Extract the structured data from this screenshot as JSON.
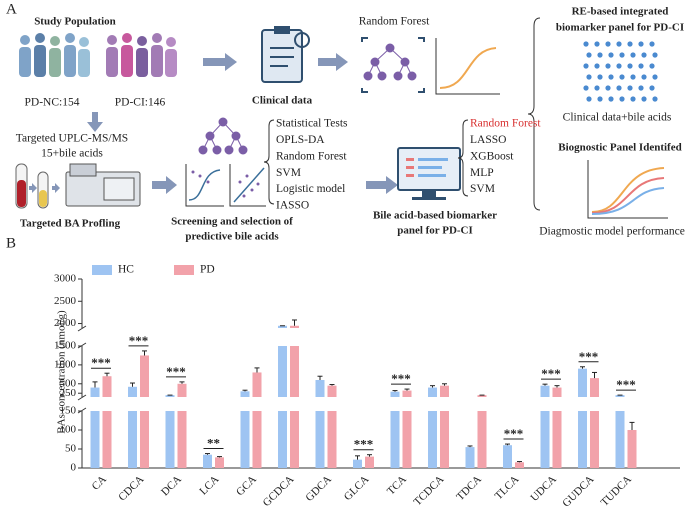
{
  "panel_a": {
    "label": "A",
    "study_population": "Study Population",
    "pd_nc": "PD-NC:154",
    "pd_ci": "PD-CI:146",
    "clinical_data": "Clinical data",
    "random_forest_top": "Random Forest",
    "integrated_title": [
      "RE-based integrated",
      "biomarker panel for PD-CI"
    ],
    "clinical_bile": "Clinical data+bile acids",
    "panel_identified": "Biognostic Panel Identifed",
    "model_performance": "Diagmostic model performance",
    "uplc": [
      "Targeted UPLC-MS/MS",
      "15+bile acids"
    ],
    "ba_profiling": "Targeted BA Profling",
    "screening": [
      "Screening and selection of",
      "predictive bile acids"
    ],
    "methods": [
      "Statistical Tests",
      "OPLS-DA",
      "Random Forest",
      "SVM",
      "Logistic model",
      "IASSO"
    ],
    "ba_panel": [
      "Bile acid-based biomarker",
      "panel for PD-CI"
    ],
    "models": [
      "Random Forest",
      "LASSO",
      "XGBoost",
      "MLP",
      "SVM"
    ]
  },
  "chart_data": {
    "type": "bar",
    "panel_label": "B",
    "y_label": "BAs concentration (nmol/g)",
    "categories": [
      "CA",
      "CDCA",
      "DCA",
      "LCA",
      "GCA",
      "GCDCA",
      "GDCA",
      "GLCA",
      "TCA",
      "TCDCA",
      "TDCA",
      "TLCA",
      "UDCA",
      "GUDCA",
      "TUDCA"
    ],
    "series": [
      {
        "name": "HC",
        "color": "#9ec4f2",
        "values": [
          400,
          420,
          200,
          35,
          300,
          1950,
          600,
          22,
          290,
          400,
          55,
          60,
          450,
          900,
          200
        ],
        "errors": [
          150,
          100,
          0,
          3,
          30,
          0,
          100,
          10,
          30,
          50,
          3,
          3,
          40,
          50,
          0
        ]
      },
      {
        "name": "PD",
        "color": "#f2a2aa",
        "values": [
          700,
          1250,
          500,
          28,
          800,
          1950,
          450,
          30,
          320,
          450,
          200,
          15,
          400,
          650,
          100
        ],
        "errors": [
          80,
          120,
          50,
          2,
          120,
          130,
          30,
          5,
          40,
          50,
          0,
          2,
          50,
          150,
          20
        ]
      }
    ],
    "axis_segments": [
      {
        "ylim": [
          0,
          150
        ],
        "yticks": [
          0,
          50,
          100,
          150
        ]
      },
      {
        "ylim": [
          150,
          1500
        ],
        "yticks": [
          250,
          500,
          1000,
          1500
        ]
      },
      {
        "ylim": [
          1900,
          3000
        ],
        "yticks": [
          2000,
          2500,
          3000
        ]
      }
    ],
    "annotations": [
      {
        "category": "CA",
        "label": "***"
      },
      {
        "category": "CDCA",
        "label": "***"
      },
      {
        "category": "DCA",
        "label": "***"
      },
      {
        "category": "LCA",
        "label": "**"
      },
      {
        "category": "GLCA",
        "label": "***"
      },
      {
        "category": "TCA",
        "label": "***"
      },
      {
        "category": "TLCA",
        "label": "***"
      },
      {
        "category": "UDCA",
        "label": "***"
      },
      {
        "category": "GUDCA",
        "label": "***"
      },
      {
        "category": "TUDCA",
        "label": "***"
      }
    ]
  }
}
